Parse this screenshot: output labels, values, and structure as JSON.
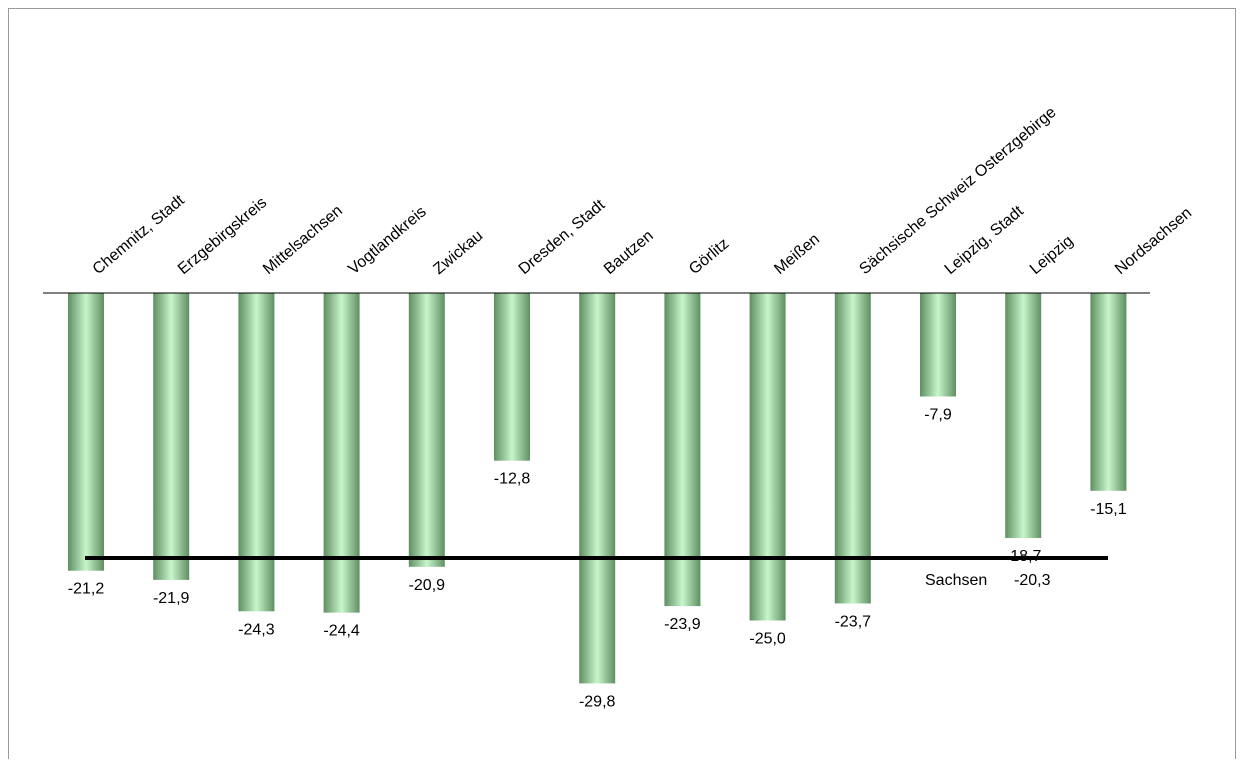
{
  "chart_data": {
    "type": "bar",
    "categories": [
      "Chemnitz, Stadt",
      "Erzgebirgskreis",
      "Mittelsachsen",
      "Vogtlandkreis",
      "Zwickau",
      "Dresden, Stadt",
      "Bautzen",
      "Görlitz",
      "Meißen",
      "Sächsische Schweiz Osterzgebirge",
      "Leipzig, Stadt",
      "Leipzig",
      "Nordsachsen"
    ],
    "values": [
      -21.2,
      -21.9,
      -24.3,
      -24.4,
      -20.9,
      -12.8,
      -29.8,
      -23.9,
      -25.0,
      -23.7,
      -7.9,
      -18.7,
      -15.1
    ],
    "value_labels": [
      "-21,2",
      "-21,9",
      "-24,3",
      "-24,4",
      "-20,9",
      "-12,8",
      "-29,8",
      "-23,9",
      "-25,0",
      "-23,7",
      "-7,9",
      "-18,7",
      "-15,1"
    ],
    "reference_line": {
      "label": "Sachsen",
      "value": -20.3,
      "value_label": "-20,3"
    },
    "ylim": [
      -30,
      0
    ],
    "grid": false,
    "legend": "none",
    "bar_color_light": "#c9f5cc",
    "bar_color_dark": "#5e8f61"
  }
}
